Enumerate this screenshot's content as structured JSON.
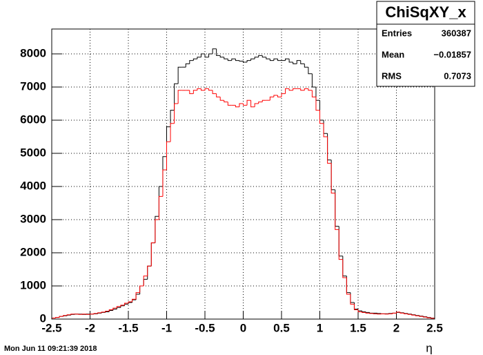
{
  "chart_data": {
    "type": "histogram",
    "xlabel": "η",
    "date": "Mon Jun 11 09:21:39 2018",
    "stats": {
      "title": "ChiSqXY_x",
      "rows": [
        [
          "Entries",
          "360387"
        ],
        [
          "Mean",
          "−0.01857"
        ],
        [
          "RMS",
          "0.7073"
        ]
      ]
    },
    "bins": [
      -2.5,
      -2.45,
      -2.4,
      -2.35,
      -2.3,
      -2.25,
      -2.2,
      -2.15,
      -2.1,
      -2.05,
      -2,
      -1.95,
      -1.9,
      -1.85,
      -1.8,
      -1.75,
      -1.7,
      -1.65,
      -1.6,
      -1.55,
      -1.5,
      -1.45,
      -1.4,
      -1.35,
      -1.3,
      -1.25,
      -1.2,
      -1.15,
      -1.1,
      -1.05,
      -1,
      -0.95,
      -0.9,
      -0.85,
      -0.8,
      -0.75,
      -0.7,
      -0.65,
      -0.6,
      -0.55,
      -0.5,
      -0.45,
      -0.4,
      -0.35,
      -0.3,
      -0.25,
      -0.2,
      -0.15,
      -0.1,
      -0.05,
      0,
      0.05,
      0.1,
      0.15,
      0.2,
      0.25,
      0.3,
      0.35,
      0.4,
      0.45,
      0.5,
      0.55,
      0.6,
      0.65,
      0.7,
      0.75,
      0.8,
      0.85,
      0.9,
      0.95,
      1,
      1.05,
      1.1,
      1.15,
      1.2,
      1.25,
      1.3,
      1.35,
      1.4,
      1.45,
      1.5,
      1.55,
      1.6,
      1.65,
      1.7,
      1.75,
      1.8,
      1.85,
      1.9,
      1.95,
      2,
      2.05,
      2.1,
      2.15,
      2.2,
      2.25,
      2.3,
      2.35,
      2.4,
      2.45,
      2.5
    ],
    "series": [
      {
        "color": "#000000",
        "values": [
          30,
          50,
          80,
          100,
          120,
          140,
          150,
          150,
          140,
          150,
          150,
          160,
          180,
          200,
          220,
          260,
          300,
          350,
          400,
          450,
          500,
          580,
          750,
          1000,
          1200,
          1600,
          2300,
          3100,
          4000,
          4900,
          5800,
          6300,
          7100,
          7600,
          7600,
          7700,
          7800,
          7850,
          7900,
          8000,
          7900,
          8000,
          8150,
          7950,
          7900,
          7850,
          7800,
          7850,
          7800,
          7780,
          7750,
          7800,
          7850,
          7900,
          7950,
          7900,
          7850,
          7800,
          7850,
          7800,
          7800,
          7850,
          7750,
          7700,
          7800,
          7700,
          7600,
          7400,
          7000,
          6600,
          6000,
          5600,
          4800,
          3900,
          2800,
          1900,
          1300,
          800,
          500,
          300,
          250,
          220,
          200,
          180,
          180,
          170,
          160,
          160,
          170,
          180,
          200,
          190,
          170,
          150,
          130,
          110,
          90,
          70,
          50,
          30
        ]
      },
      {
        "color": "#ff0000",
        "values": [
          30,
          50,
          80,
          110,
          130,
          150,
          150,
          140,
          150,
          140,
          150,
          170,
          190,
          210,
          240,
          280,
          330,
          380,
          420,
          480,
          520,
          600,
          800,
          1000,
          1300,
          1600,
          2300,
          3000,
          3700,
          4500,
          5350,
          5900,
          6500,
          6900,
          6900,
          6900,
          6800,
          6900,
          6950,
          6900,
          6950,
          6900,
          6800,
          6700,
          6600,
          6550,
          6450,
          6450,
          6400,
          6500,
          6450,
          6600,
          6400,
          6500,
          6550,
          6600,
          6600,
          6700,
          6750,
          6700,
          6800,
          6950,
          6900,
          6950,
          6950,
          6900,
          6950,
          6900,
          6700,
          6300,
          5900,
          5500,
          4700,
          3800,
          2700,
          1800,
          1250,
          750,
          450,
          280,
          220,
          200,
          180,
          170,
          160,
          150,
          160,
          150,
          160,
          180,
          210,
          180,
          160,
          140,
          120,
          100,
          80,
          60,
          40,
          25
        ]
      }
    ],
    "xlim": [
      -2.5,
      2.5
    ],
    "ylim": [
      0,
      8750
    ],
    "xticks": [
      -2.5,
      -2,
      -1.5,
      -1,
      -0.5,
      0,
      0.5,
      1,
      1.5,
      2,
      2.5
    ],
    "yticks": [
      0,
      1000,
      2000,
      3000,
      4000,
      5000,
      6000,
      7000,
      8000
    ],
    "grid": true
  }
}
